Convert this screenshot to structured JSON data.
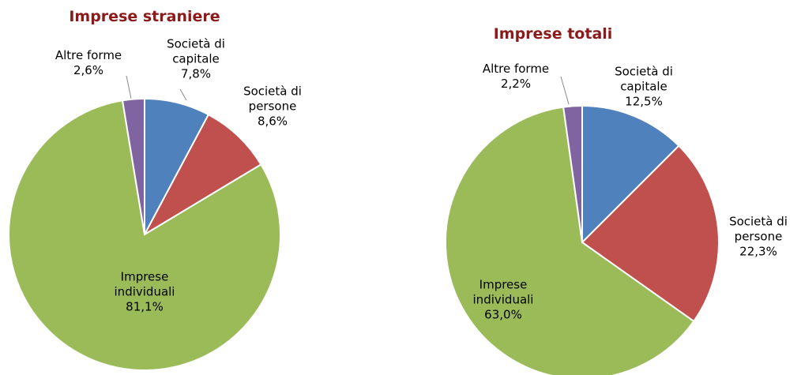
{
  "chart_data": [
    {
      "type": "pie",
      "title": "Imprese straniere",
      "categories": [
        "Società di capitale",
        "Società di persone",
        "Imprese individuali",
        "Altre forme"
      ],
      "values": [
        7.8,
        8.6,
        81.1,
        2.6
      ],
      "value_labels": [
        "7,8%",
        "8,6%",
        "81,1%",
        "2,6%"
      ],
      "colors": [
        "#4f81bd",
        "#c0504d",
        "#9bbb59",
        "#8064a2"
      ]
    },
    {
      "type": "pie",
      "title": "Imprese totali",
      "categories": [
        "Società di capitale",
        "Società di persone",
        "Imprese individuali",
        "Altre forme"
      ],
      "values": [
        12.5,
        22.3,
        63.0,
        2.2
      ],
      "value_labels": [
        "12,5%",
        "22,3%",
        "63,0%",
        "2,2%"
      ],
      "colors": [
        "#4f81bd",
        "#c0504d",
        "#9bbb59",
        "#8064a2"
      ]
    }
  ]
}
